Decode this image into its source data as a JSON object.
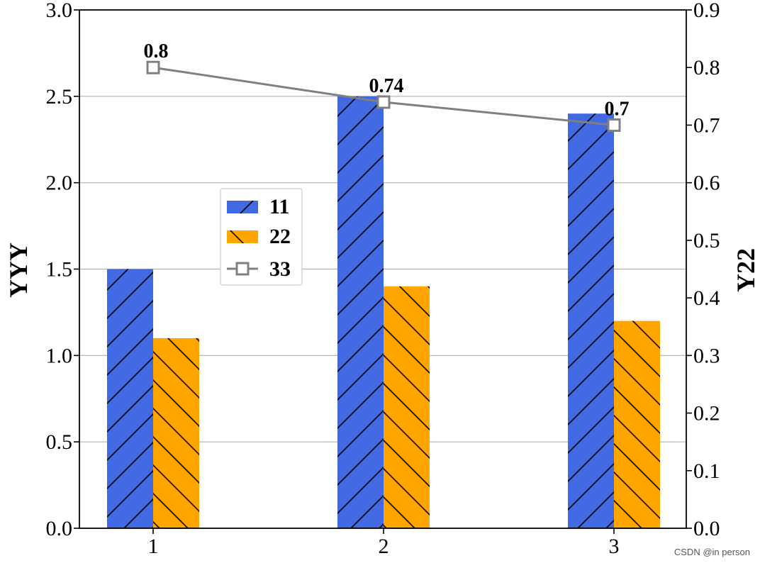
{
  "chart_data": {
    "type": "bar",
    "categories": [
      "1",
      "2",
      "3"
    ],
    "series": [
      {
        "name": "11",
        "values": [
          1.5,
          2.5,
          2.4
        ],
        "color": "#4169E1",
        "hatch": "/",
        "axis": "left"
      },
      {
        "name": "22",
        "values": [
          1.1,
          1.4,
          1.2
        ],
        "color": "#FFA500",
        "hatch": "\\",
        "axis": "left"
      },
      {
        "name": "33",
        "type": "line",
        "values": [
          0.8,
          0.74,
          0.7
        ],
        "color": "#808080",
        "marker": "square-open",
        "axis": "right",
        "labels": [
          "0.8",
          "0.74",
          "0.7"
        ]
      }
    ],
    "ylabel": "YYY",
    "y2label": "Y22",
    "ylim": [
      0,
      3.0
    ],
    "y2lim": [
      0,
      0.9
    ],
    "yticks": [
      "0.0",
      "0.5",
      "1.0",
      "1.5",
      "2.0",
      "2.5",
      "3.0"
    ],
    "y2ticks": [
      "0.0",
      "0.1",
      "0.2",
      "0.3",
      "0.4",
      "0.5",
      "0.6",
      "0.7",
      "0.8",
      "0.9"
    ],
    "grid": "horizontal",
    "legend_position": "center-left"
  },
  "watermark": "CSDN @in person"
}
